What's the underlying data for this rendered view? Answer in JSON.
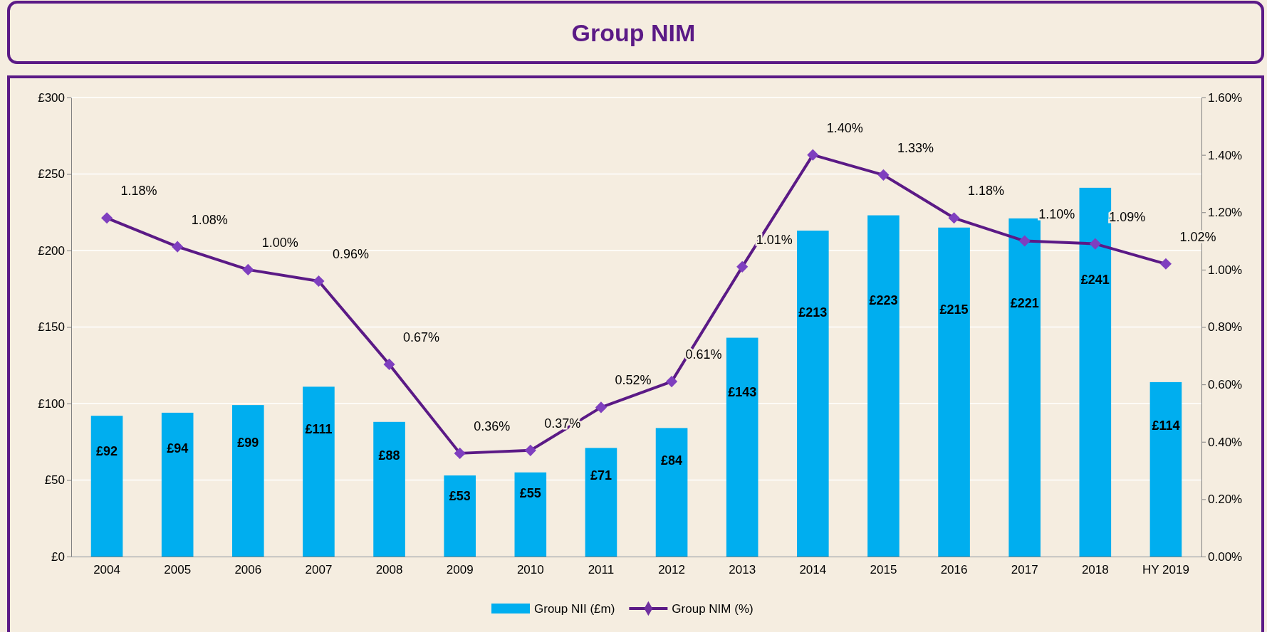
{
  "chart_data": {
    "type": "bar",
    "title": "Group NIM",
    "categories": [
      "2004",
      "2005",
      "2006",
      "2007",
      "2008",
      "2009",
      "2010",
      "2011",
      "2012",
      "2013",
      "2014",
      "2015",
      "2016",
      "2017",
      "2018",
      "HY 2019"
    ],
    "series": [
      {
        "name": "Group NII (£m)",
        "color": "#00aeef",
        "values": [
          92,
          94,
          99,
          111,
          88,
          53,
          55,
          71,
          84,
          143,
          213,
          223,
          215,
          221,
          241,
          114
        ],
        "value_labels": [
          "£92",
          "£94",
          "£99",
          "£111",
          "£88",
          "£53",
          "£55",
          "£71",
          "£84",
          "£143",
          "£213",
          "£223",
          "£215",
          "£221",
          "£241",
          "£114"
        ]
      },
      {
        "name": "Group NIM (%)",
        "type": "line",
        "axis": "y2",
        "color": "#5b1a86",
        "marker": "diamond",
        "line_style": "solid",
        "values": [
          1.18,
          1.08,
          1.0,
          0.96,
          0.67,
          0.36,
          0.37,
          0.52,
          0.61,
          1.01,
          1.4,
          1.33,
          1.18,
          1.1,
          1.09,
          1.02
        ],
        "value_labels": [
          "1.18%",
          "1.08%",
          "1.00%",
          "0.96%",
          "0.67%",
          "0.36%",
          "0.37%",
          "0.52%",
          "0.61%",
          "1.01%",
          "1.40%",
          "1.33%",
          "1.18%",
          "1.10%",
          "1.09%",
          "1.02%"
        ]
      }
    ],
    "ylim": [
      0,
      300
    ],
    "yticks": [
      {
        "value": 0,
        "label": "£0"
      },
      {
        "value": 50,
        "label": "£50"
      },
      {
        "value": 100,
        "label": "£100"
      },
      {
        "value": 150,
        "label": "£150"
      },
      {
        "value": 200,
        "label": "£200"
      },
      {
        "value": 250,
        "label": "£250"
      },
      {
        "value": 300,
        "label": "£300"
      }
    ],
    "y2lim": [
      0,
      1.6
    ],
    "y2ticks": [
      {
        "value": 0,
        "label": "0.00%"
      },
      {
        "value": 0.2,
        "label": "0.20%"
      },
      {
        "value": 0.4,
        "label": "0.40%"
      },
      {
        "value": 0.6,
        "label": "0.60%"
      },
      {
        "value": 0.8,
        "label": "0.80%"
      },
      {
        "value": 1.0,
        "label": "1.00%"
      },
      {
        "value": 1.2,
        "label": "1.20%"
      },
      {
        "value": 1.4,
        "label": "1.40%"
      },
      {
        "value": 1.6,
        "label": "1.60%"
      }
    ],
    "grid": "y",
    "legend": "bottom"
  }
}
